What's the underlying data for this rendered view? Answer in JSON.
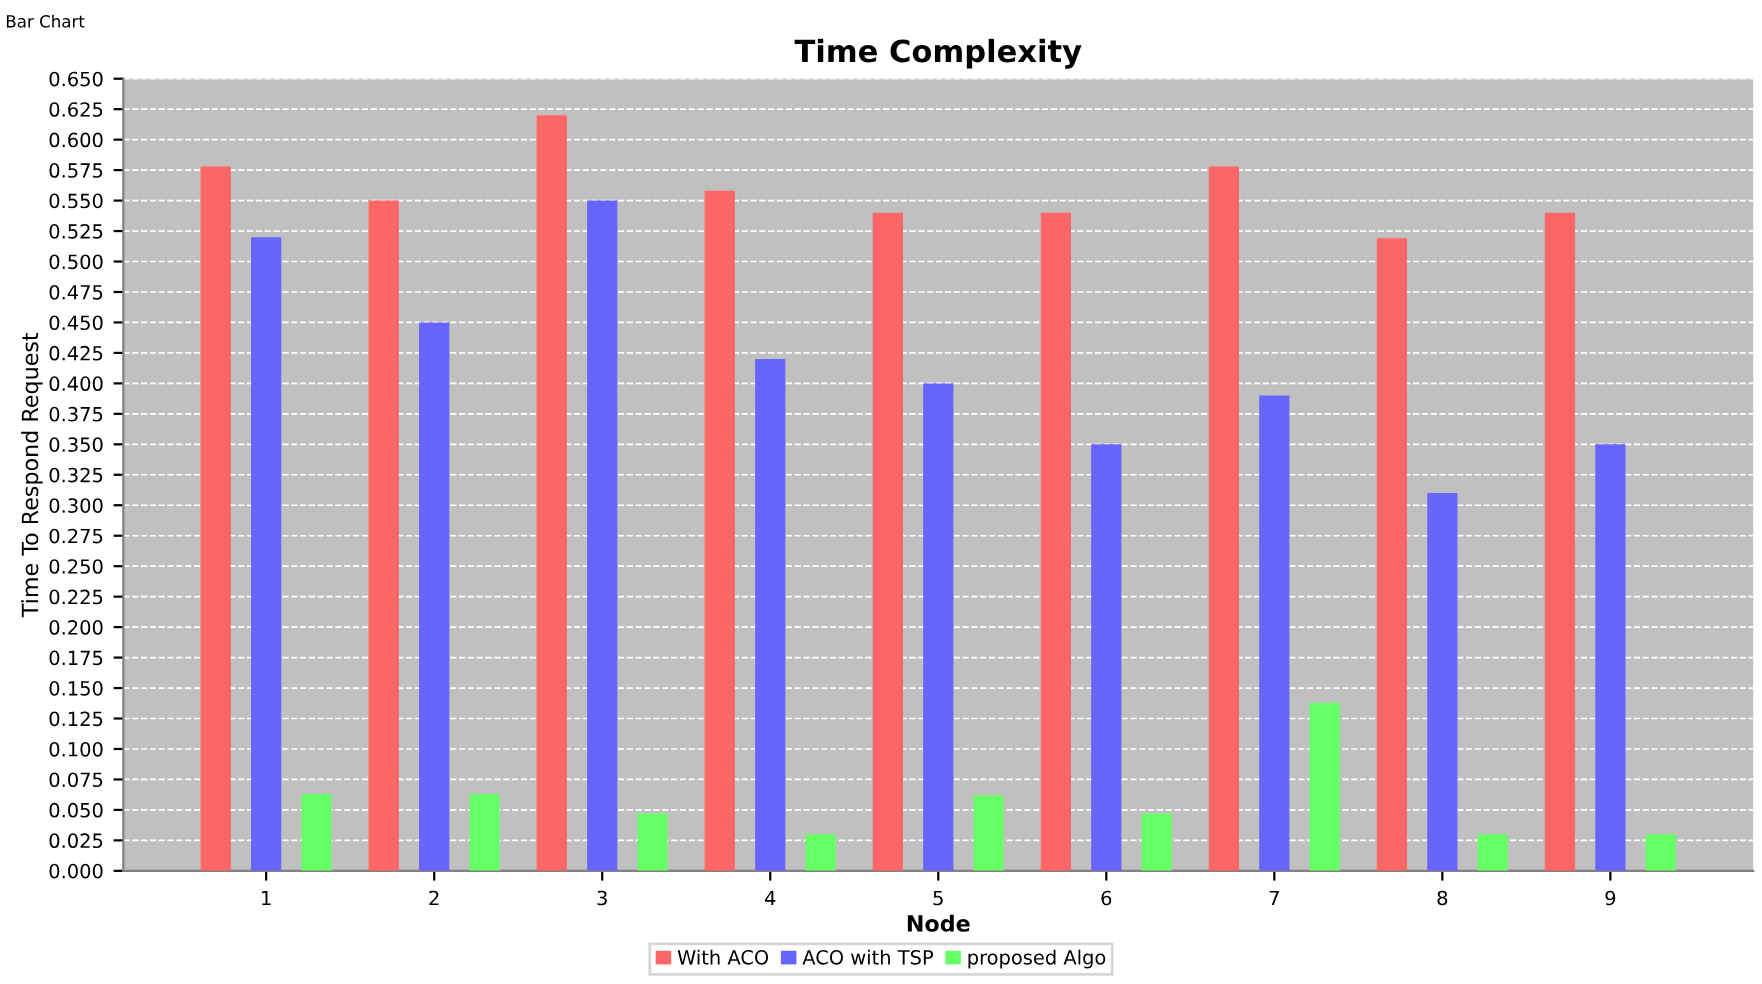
{
  "chart_data": {
    "type": "bar",
    "title": "Time Complexity",
    "xlabel": "Node",
    "ylabel": "Time To Respond Request",
    "annotations": [
      "Bar Chart"
    ],
    "categories": [
      "1",
      "2",
      "3",
      "4",
      "5",
      "6",
      "7",
      "8",
      "9"
    ],
    "series": [
      {
        "name": "With ACO",
        "color": "#ff6666",
        "values": [
          0.578,
          0.55,
          0.62,
          0.558,
          0.54,
          0.54,
          0.578,
          0.519,
          0.54
        ]
      },
      {
        "name": "ACO with TSP",
        "color": "#6666ff",
        "values": [
          0.52,
          0.45,
          0.55,
          0.42,
          0.4,
          0.35,
          0.39,
          0.31,
          0.35
        ]
      },
      {
        "name": "proposed Algo",
        "color": "#66ff66",
        "values": [
          0.063,
          0.063,
          0.047,
          0.03,
          0.062,
          0.047,
          0.138,
          0.03,
          0.03
        ]
      }
    ],
    "ylim": [
      0,
      0.65
    ],
    "yticks": [
      {
        "value": 0,
        "label": "0.000"
      },
      {
        "value": 0.025,
        "label": "0.025"
      },
      {
        "value": 0.05,
        "label": "0.050"
      },
      {
        "value": 0.075,
        "label": "0.075"
      },
      {
        "value": 0.1,
        "label": "0.100"
      },
      {
        "value": 0.125,
        "label": "0.125"
      },
      {
        "value": 0.15,
        "label": "0.150"
      },
      {
        "value": 0.175,
        "label": "0.175"
      },
      {
        "value": 0.2,
        "label": "0.200"
      },
      {
        "value": 0.225,
        "label": "0.225"
      },
      {
        "value": 0.25,
        "label": "0.250"
      },
      {
        "value": 0.275,
        "label": "0.275"
      },
      {
        "value": 0.3,
        "label": "0.300"
      },
      {
        "value": 0.325,
        "label": "0.325"
      },
      {
        "value": 0.35,
        "label": "0.350"
      },
      {
        "value": 0.375,
        "label": "0.375"
      },
      {
        "value": 0.4,
        "label": "0.400"
      },
      {
        "value": 0.425,
        "label": "0.425"
      },
      {
        "value": 0.45,
        "label": "0.450"
      },
      {
        "value": 0.475,
        "label": "0.475"
      },
      {
        "value": 0.5,
        "label": "0.500"
      },
      {
        "value": 0.525,
        "label": "0.525"
      },
      {
        "value": 0.55,
        "label": "0.550"
      },
      {
        "value": 0.575,
        "label": "0.575"
      },
      {
        "value": 0.6,
        "label": "0.600"
      },
      {
        "value": 0.625,
        "label": "0.625"
      },
      {
        "value": 0.65,
        "label": "0.650"
      }
    ],
    "grid": "y",
    "legend": "bottom"
  }
}
